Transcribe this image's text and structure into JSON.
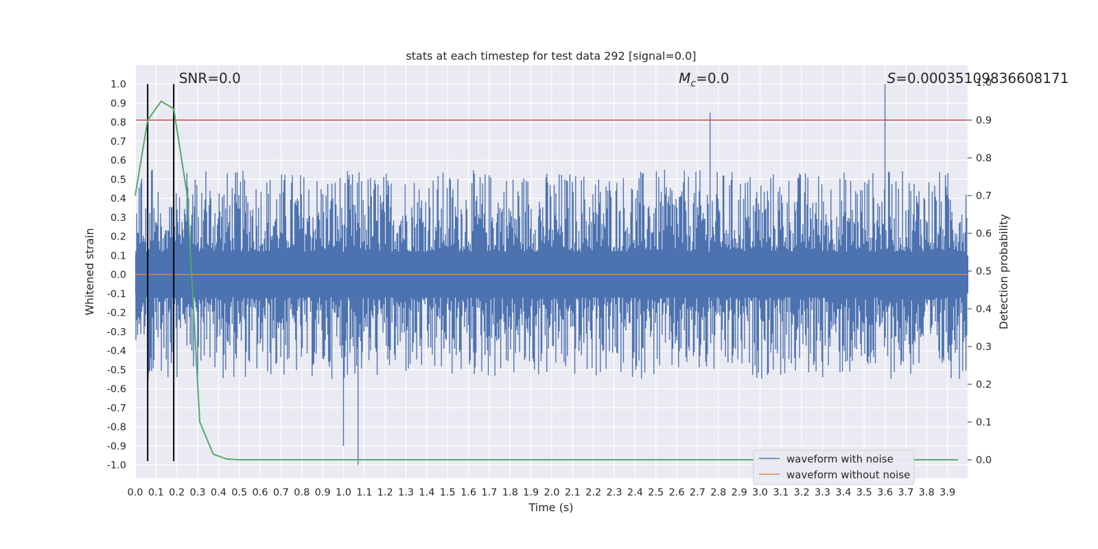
{
  "chart_data": {
    "type": "line",
    "title": "stats at each timestep for test data 292 [signal=0.0]",
    "xlabel": "Time (s)",
    "ylabel": "Whitened strain",
    "y2label": "Detection probability",
    "xlim": [
      0.0,
      4.0
    ],
    "ylim": [
      -1.1,
      1.1
    ],
    "y2lim": [
      -0.05,
      1.05
    ],
    "x_ticks": [
      "0.0",
      "0.1",
      "0.2",
      "0.3",
      "0.4",
      "0.5",
      "0.6",
      "0.7",
      "0.8",
      "0.9",
      "1.0",
      "1.1",
      "1.2",
      "1.3",
      "1.4",
      "1.5",
      "1.6",
      "1.7",
      "1.8",
      "1.9",
      "2.0",
      "2.1",
      "2.2",
      "2.3",
      "2.4",
      "2.5",
      "2.6",
      "2.7",
      "2.8",
      "2.9",
      "3.0",
      "3.1",
      "3.2",
      "3.3",
      "3.4",
      "3.5",
      "3.6",
      "3.7",
      "3.8",
      "3.9"
    ],
    "y_ticks": [
      "1.0",
      "0.9",
      "0.8",
      "0.7",
      "0.6",
      "0.5",
      "0.4",
      "0.3",
      "0.2",
      "0.1",
      "0.0",
      "-0.1",
      "-0.2",
      "-0.3",
      "-0.4",
      "-0.5",
      "-0.6",
      "-0.7",
      "-0.8",
      "-0.9",
      "-1.0"
    ],
    "y2_ticks": [
      "1.0",
      "0.9",
      "0.8",
      "0.7",
      "0.6",
      "0.5",
      "0.4",
      "0.3",
      "0.2",
      "0.1",
      "0.0"
    ],
    "grid": true,
    "legend_position": "lower-right",
    "annotations": [
      {
        "text": "SNR=0.0",
        "x": 0.2
      },
      {
        "text": "=0.0",
        "math": "M_c",
        "x": 2.6
      },
      {
        "text": "=0.00035109836608171",
        "math": "S",
        "x": 3.6
      }
    ],
    "vertical_lines": [
      0.06,
      0.185
    ],
    "threshold_line": {
      "y2": 0.9,
      "color": "#c44e52"
    },
    "noise_envelope": {
      "x_range": [
        0.0,
        4.0
      ],
      "typical_max": 0.55,
      "typical_min": -0.55,
      "peaks": [
        [
          1.07,
          -1.0
        ],
        [
          2.76,
          0.85
        ],
        [
          3.6,
          1.0
        ],
        [
          1.0,
          -0.9
        ]
      ]
    },
    "series": [
      {
        "name": "waveform with noise",
        "color": "#4c72b0"
      },
      {
        "name": "waveform without noise",
        "color": "#dd8452",
        "x": [
          0.0,
          4.0
        ],
        "y": [
          0.0,
          0.0
        ]
      },
      {
        "color": "#55a868",
        "axis": "y2",
        "x": [
          0.0,
          0.06,
          0.125,
          0.185,
          0.25,
          0.31,
          0.375,
          0.44,
          0.5,
          0.6,
          1.0,
          2.0,
          3.0,
          3.95
        ],
        "y": [
          0.7,
          0.9,
          0.95,
          0.93,
          0.7,
          0.1,
          0.015,
          0.002,
          0.0,
          0.0,
          0.0,
          0.0,
          0.0,
          0.0
        ]
      }
    ]
  }
}
